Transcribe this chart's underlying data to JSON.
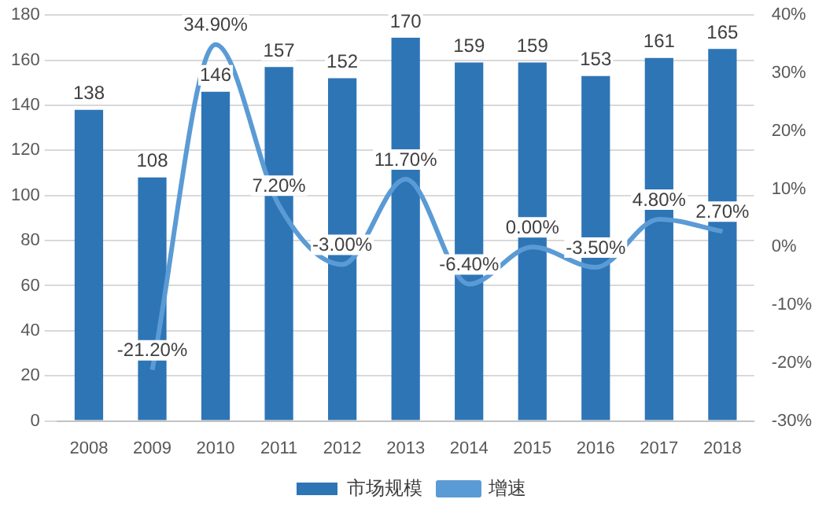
{
  "chart_data": {
    "type": "bar",
    "categories": [
      "2008",
      "2009",
      "2010",
      "2011",
      "2012",
      "2013",
      "2014",
      "2015",
      "2016",
      "2017",
      "2018"
    ],
    "series": [
      {
        "name": "市场规模",
        "color": "#2e75b6",
        "values": [
          138,
          108,
          146,
          157,
          152,
          170,
          159,
          159,
          153,
          161,
          165
        ]
      },
      {
        "name": "增速",
        "type": "line",
        "axis": "y2",
        "color": "#5b9bd5",
        "marker": "none",
        "values": [
          null,
          -21.2,
          34.9,
          7.2,
          -3.0,
          11.7,
          -6.4,
          0.0,
          -3.5,
          4.8,
          2.7
        ],
        "value_labels": [
          null,
          "-21.20%",
          "34.90%",
          "7.20%",
          "-3.00%",
          "11.70%",
          "-6.40%",
          "0.00%",
          "-3.50%",
          "4.80%",
          "2.70%"
        ]
      }
    ],
    "data_labels": true,
    "ylim": [
      0,
      180
    ],
    "yticks": [
      0,
      20,
      40,
      60,
      80,
      100,
      120,
      140,
      160,
      180
    ],
    "y2lim": [
      -30,
      40
    ],
    "y2ticks": [
      {
        "value": -30,
        "label": "-30%"
      },
      {
        "value": -20,
        "label": "-20%"
      },
      {
        "value": -10,
        "label": "-10%"
      },
      {
        "value": 0,
        "label": "0%"
      },
      {
        "value": 10,
        "label": "10%"
      },
      {
        "value": 20,
        "label": "20%"
      },
      {
        "value": 30,
        "label": "30%"
      },
      {
        "value": 40,
        "label": "40%"
      }
    ],
    "grid": "y",
    "legend": "bottom"
  }
}
